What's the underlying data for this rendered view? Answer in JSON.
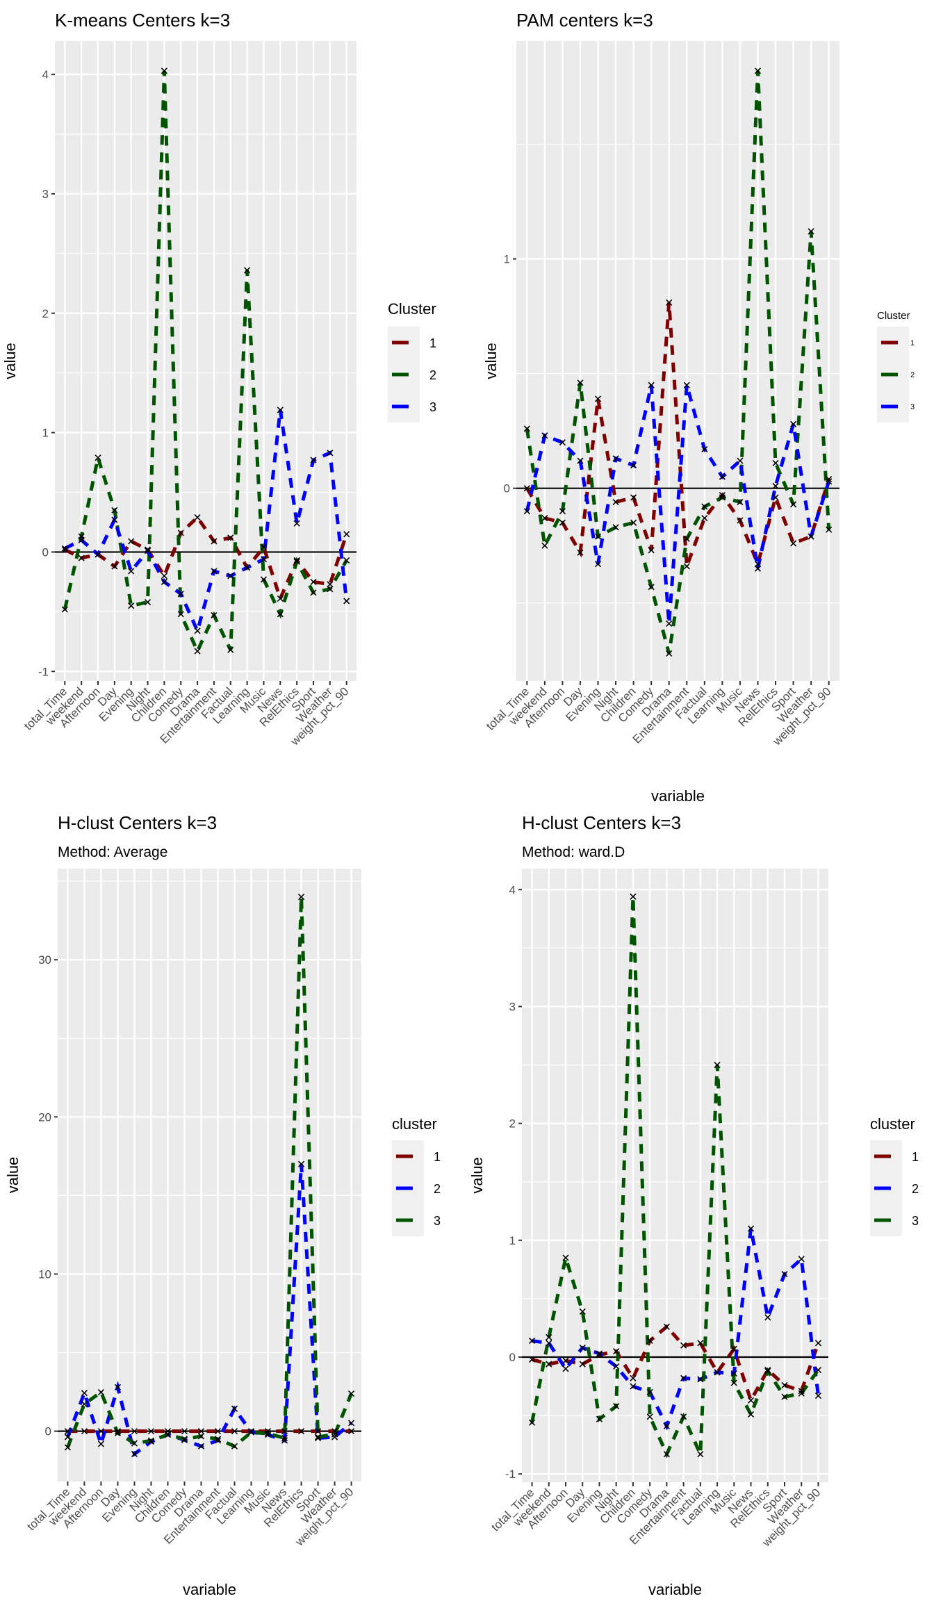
{
  "chart_data": [
    {
      "type": "line",
      "title": "K-means Centers k=3",
      "subtitle": "",
      "xlabel": "",
      "ylabel": "value",
      "legend_title": "Cluster",
      "legend_placement": "right",
      "ylim": [
        -1.08,
        4.28
      ],
      "yticks": [
        -1,
        0,
        1,
        2,
        3,
        4
      ],
      "grid": true,
      "hline": 0,
      "categories": [
        "total_Time",
        "weekend",
        "Afternoon",
        "Day",
        "Evening",
        "Night",
        "Children",
        "Comedy",
        "Drama",
        "Entertainment",
        "Factual",
        "Learning",
        "Music",
        "News",
        "RelEthics",
        "Sport",
        "Weather",
        "weight_pct_90"
      ],
      "series": [
        {
          "name": "1",
          "color": "#7f0000",
          "values": [
            0.02,
            -0.05,
            -0.02,
            -0.12,
            0.09,
            0.02,
            -0.2,
            0.16,
            0.29,
            0.09,
            0.12,
            -0.13,
            0.04,
            -0.39,
            -0.07,
            -0.25,
            -0.27,
            0.15
          ]
        },
        {
          "name": "2",
          "color": "#005400",
          "values": [
            -0.48,
            0.13,
            0.79,
            0.35,
            -0.45,
            -0.42,
            4.03,
            -0.52,
            -0.83,
            -0.53,
            -0.82,
            2.36,
            -0.23,
            -0.52,
            -0.08,
            -0.34,
            -0.31,
            -0.07
          ]
        },
        {
          "name": "3",
          "color": "#0000ff",
          "values": [
            0.03,
            0.1,
            -0.02,
            0.27,
            -0.16,
            0.01,
            -0.25,
            -0.35,
            -0.66,
            -0.16,
            -0.2,
            -0.13,
            -0.06,
            1.19,
            0.24,
            0.77,
            0.83,
            -0.41
          ]
        }
      ]
    },
    {
      "type": "line",
      "title": "PAM centers k=3",
      "subtitle": "",
      "xlabel": "variable",
      "ylabel": "value",
      "legend_title": "Cluster",
      "legend_placement": "right",
      "ylim": [
        -0.84,
        1.95
      ],
      "yticks": [
        0,
        1
      ],
      "grid": true,
      "hline": 0,
      "categories": [
        "total_Time",
        "weekend",
        "Afternoon",
        "Day",
        "Evening",
        "Night",
        "Children",
        "Comedy",
        "Drama",
        "Entertainment",
        "Factual",
        "Learning",
        "Music",
        "News",
        "RelEthics",
        "Sport",
        "Weather",
        "weight_pct_90"
      ],
      "series": [
        {
          "name": "1",
          "color": "#7f0000",
          "values": [
            0.0,
            -0.13,
            -0.15,
            -0.28,
            0.39,
            -0.06,
            -0.04,
            -0.27,
            0.81,
            -0.34,
            -0.13,
            -0.03,
            -0.14,
            -0.33,
            -0.04,
            -0.24,
            -0.21,
            0.04
          ]
        },
        {
          "name": "2",
          "color": "#005400",
          "values": [
            0.26,
            -0.25,
            -0.1,
            0.46,
            -0.21,
            -0.17,
            -0.15,
            -0.43,
            -0.72,
            -0.22,
            -0.08,
            -0.04,
            -0.06,
            1.82,
            0.11,
            -0.07,
            1.12,
            -0.18
          ]
        },
        {
          "name": "3",
          "color": "#0000ff",
          "values": [
            -0.1,
            0.23,
            0.2,
            0.12,
            -0.33,
            0.13,
            0.1,
            0.45,
            -0.59,
            0.45,
            0.17,
            0.05,
            0.12,
            -0.35,
            0.01,
            0.28,
            -0.21,
            0.03
          ]
        }
      ]
    },
    {
      "type": "line",
      "title": "H-clust Centers k=3",
      "subtitle": "Method: Average",
      "xlabel": "variable",
      "ylabel": "value",
      "legend_title": "cluster",
      "legend_placement": "right",
      "ylim": [
        -3.2,
        35.8
      ],
      "yticks": [
        0,
        10,
        20,
        30
      ],
      "grid": true,
      "hline": 0,
      "categories": [
        "total_Time",
        "weekend",
        "Afternoon",
        "Day",
        "Evening",
        "Night",
        "Children",
        "Comedy",
        "Drama",
        "Entertainment",
        "Factual",
        "Learning",
        "Music",
        "News",
        "RelEthics",
        "Sport",
        "Weather",
        "weight_pct_90"
      ],
      "series": [
        {
          "name": "1",
          "color": "#7f0000",
          "values": [
            0,
            0,
            0,
            0,
            0,
            0,
            0,
            0,
            0,
            0,
            0,
            0,
            0,
            0,
            0,
            0,
            0,
            0
          ]
        },
        {
          "name": "2",
          "color": "#0000ff",
          "values": [
            -0.37,
            2.43,
            -0.81,
            2.8,
            -1.45,
            -0.66,
            -0.22,
            -0.56,
            -0.96,
            -0.59,
            1.43,
            -0.05,
            -0.22,
            -0.59,
            17.0,
            -0.44,
            -0.37,
            0.52
          ]
        },
        {
          "name": "3",
          "color": "#005400",
          "values": [
            -1.03,
            1.73,
            2.48,
            -0.12,
            -0.77,
            -0.6,
            -0.22,
            -0.5,
            -0.32,
            -0.5,
            -0.96,
            -0.07,
            -0.15,
            -0.44,
            34.0,
            -0.37,
            -0.2,
            2.39
          ]
        }
      ]
    },
    {
      "type": "line",
      "title": "H-clust Centers k=3",
      "subtitle": "Method: ward.D",
      "xlabel": "variable",
      "ylabel": "value",
      "legend_title": "cluster",
      "legend_placement": "right",
      "ylim": [
        -1.07,
        4.18
      ],
      "yticks": [
        -1,
        0,
        1,
        2,
        3,
        4
      ],
      "grid": true,
      "hline": 0,
      "categories": [
        "total_Time",
        "weekend",
        "Afternoon",
        "Day",
        "Evening",
        "Night",
        "Children",
        "Comedy",
        "Drama",
        "Entertainment",
        "Factual",
        "Learning",
        "Music",
        "News",
        "RelEthics",
        "Sport",
        "Weather",
        "weight_pct_90"
      ],
      "series": [
        {
          "name": "1",
          "color": "#7f0000",
          "values": [
            -0.02,
            -0.06,
            -0.03,
            -0.06,
            0.02,
            0.05,
            -0.18,
            0.14,
            0.26,
            0.1,
            0.12,
            -0.13,
            0.07,
            -0.37,
            -0.11,
            -0.24,
            -0.29,
            0.12
          ]
        },
        {
          "name": "2",
          "color": "#0000ff",
          "values": [
            0.14,
            0.12,
            -0.1,
            0.08,
            0.03,
            -0.08,
            -0.25,
            -0.3,
            -0.59,
            -0.18,
            -0.19,
            -0.13,
            -0.14,
            1.1,
            0.34,
            0.71,
            0.84,
            -0.33
          ]
        },
        {
          "name": "3",
          "color": "#005400",
          "values": [
            -0.56,
            0.17,
            0.85,
            0.39,
            -0.53,
            -0.42,
            3.94,
            -0.51,
            -0.83,
            -0.51,
            -0.83,
            2.5,
            -0.22,
            -0.49,
            -0.12,
            -0.34,
            -0.31,
            -0.11
          ]
        }
      ]
    }
  ]
}
